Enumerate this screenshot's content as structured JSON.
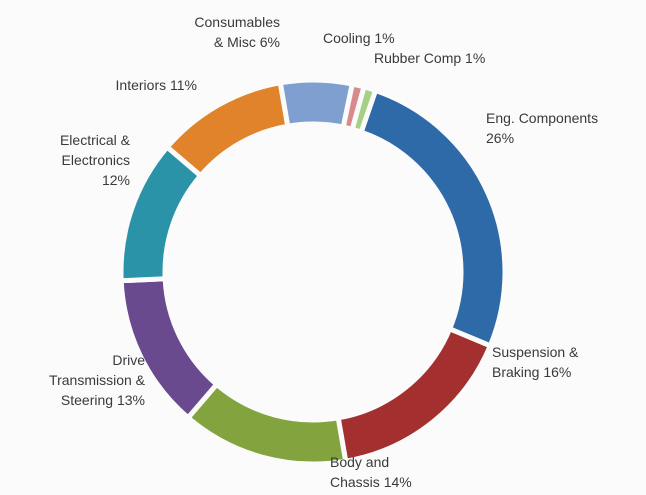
{
  "chart_data": {
    "type": "donut",
    "categories": [
      "Eng. Components",
      "Suspension & Braking",
      "Body and Chassis",
      "Drive Transmission & Steering",
      "Electrical & Electronics",
      "Interiors",
      "Consumables & Misc",
      "Cooling",
      "Rubber Comp"
    ],
    "values": [
      26,
      16,
      14,
      13,
      12,
      11,
      6,
      1,
      1
    ],
    "value_labels": [
      "26%",
      "16%",
      "14%",
      "13%",
      "12%",
      "11%",
      "6%",
      "1%",
      "1%"
    ],
    "colors": [
      "#2f6aa8",
      "#a3302f",
      "#82a33d",
      "#6a4a8f",
      "#2b93a8",
      "#e0832a",
      "#7f9fd0",
      "#d98a8a",
      "#a8cf86"
    ]
  }
}
